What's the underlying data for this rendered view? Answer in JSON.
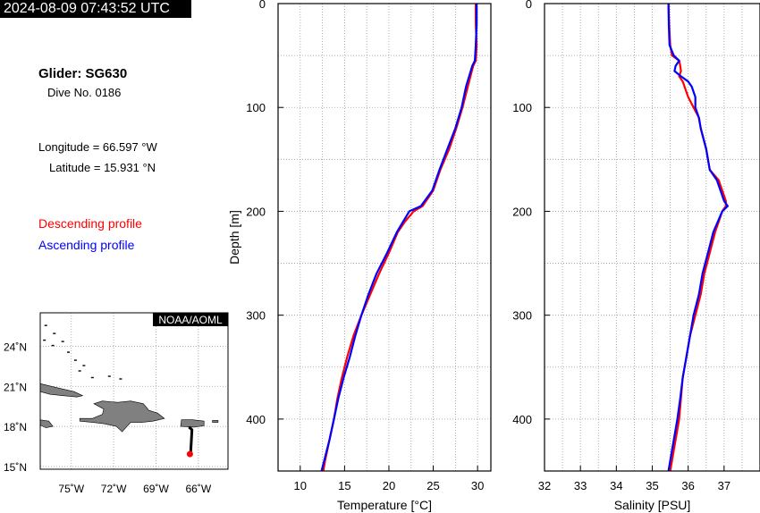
{
  "header": {
    "timestamp": "2024-08-09 07:43:52 UTC"
  },
  "info": {
    "glider": "Glider: SG630",
    "dive": "Dive No. 0186",
    "longitude": "Longitude = 66.597 °W",
    "latitude": "Latitude = 15.931 °N"
  },
  "legend": {
    "descending": "Descending profile",
    "ascending": "Ascending profile"
  },
  "colors": {
    "descending": "#ff0000",
    "ascending": "#0000ff",
    "land": "#808080",
    "track": "#000000"
  },
  "map": {
    "badge": "NOAA/AOML",
    "lat_ticks": [
      "24˚N",
      "21˚N",
      "18˚N",
      "15˚N"
    ],
    "lat_values": [
      24,
      21,
      18,
      15
    ],
    "lon_ticks": [
      "75˚W",
      "72˚W",
      "69˚W",
      "66˚W"
    ],
    "lon_values": [
      -75,
      -72,
      -69,
      -66
    ],
    "lon_range": [
      -77.2,
      -63.9
    ],
    "lat_range": [
      14.8,
      26.5
    ],
    "track": [
      [
        -66.7,
        17.9
      ],
      [
        -66.6,
        17.9
      ],
      [
        -66.45,
        17.75
      ],
      [
        -66.5,
        16.8
      ],
      [
        -66.55,
        16.0
      ]
    ],
    "position": [
      -66.597,
      15.931
    ]
  },
  "chart_data": [
    {
      "type": "line",
      "xlabel": "Temperature [°C]",
      "ylabel": "Depth [m]",
      "xlim": [
        7.5,
        31.5
      ],
      "ylim": [
        450,
        0
      ],
      "xticks": [
        10,
        15,
        20,
        25,
        30
      ],
      "yticks": [
        0,
        100,
        200,
        300,
        400
      ],
      "grid": true,
      "series": [
        {
          "name": "Descending profile",
          "depth": [
            0,
            20,
            40,
            55,
            60,
            80,
            100,
            120,
            140,
            160,
            180,
            195,
            200,
            210,
            220,
            240,
            260,
            280,
            300,
            320,
            340,
            360,
            380,
            400,
            420,
            440,
            450
          ],
          "values": [
            29.8,
            29.8,
            29.9,
            29.8,
            29.5,
            28.9,
            28.3,
            27.6,
            26.8,
            25.8,
            25.0,
            23.8,
            22.8,
            21.8,
            21.0,
            20.0,
            18.9,
            17.9,
            16.9,
            16.0,
            15.3,
            14.7,
            14.2,
            13.8,
            13.3,
            12.8,
            12.6
          ]
        },
        {
          "name": "Ascending profile",
          "depth": [
            0,
            20,
            40,
            55,
            60,
            80,
            100,
            120,
            140,
            160,
            180,
            195,
            200,
            210,
            220,
            240,
            260,
            280,
            300,
            320,
            340,
            360,
            380,
            400,
            420,
            440,
            450
          ],
          "values": [
            29.9,
            29.9,
            29.8,
            29.7,
            29.4,
            28.7,
            28.2,
            27.5,
            26.6,
            25.7,
            24.9,
            23.6,
            22.3,
            21.6,
            20.9,
            19.8,
            18.6,
            17.7,
            16.9,
            16.2,
            15.6,
            14.9,
            14.3,
            13.8,
            13.3,
            12.7,
            12.4
          ]
        }
      ]
    },
    {
      "type": "line",
      "xlabel": "Salinity [PSU]",
      "ylabel": "",
      "xlim": [
        32,
        38
      ],
      "ylim": [
        450,
        0
      ],
      "xticks": [
        32,
        33,
        34,
        35,
        36,
        37
      ],
      "yticks": [
        0,
        100,
        200,
        300,
        400
      ],
      "grid": true,
      "series": [
        {
          "name": "Descending profile",
          "depth": [
            0,
            20,
            40,
            50,
            55,
            60,
            65,
            70,
            75,
            80,
            90,
            100,
            110,
            120,
            140,
            160,
            170,
            180,
            190,
            195,
            200,
            220,
            240,
            260,
            280,
            300,
            320,
            340,
            360,
            380,
            400,
            420,
            440,
            450
          ],
          "values": [
            35.45,
            35.47,
            35.5,
            35.55,
            35.75,
            35.78,
            35.8,
            35.75,
            35.85,
            35.9,
            36.0,
            36.15,
            36.3,
            36.35,
            36.5,
            36.6,
            36.85,
            36.95,
            37.05,
            37.05,
            36.95,
            36.75,
            36.6,
            36.45,
            36.35,
            36.2,
            36.05,
            35.95,
            35.85,
            35.8,
            35.75,
            35.65,
            35.55,
            35.5
          ]
        },
        {
          "name": "Ascending profile",
          "depth": [
            0,
            20,
            40,
            50,
            55,
            60,
            65,
            70,
            75,
            80,
            90,
            100,
            110,
            120,
            140,
            160,
            170,
            180,
            190,
            195,
            200,
            220,
            240,
            260,
            280,
            300,
            320,
            340,
            360,
            380,
            400,
            420,
            440,
            450
          ],
          "values": [
            35.45,
            35.46,
            35.48,
            35.6,
            35.75,
            35.65,
            35.62,
            35.8,
            36.0,
            36.1,
            36.2,
            36.2,
            36.3,
            36.35,
            36.5,
            36.6,
            36.8,
            36.9,
            37.0,
            37.1,
            36.95,
            36.7,
            36.55,
            36.4,
            36.3,
            36.15,
            36.05,
            35.95,
            35.85,
            35.78,
            35.7,
            35.6,
            35.5,
            35.45
          ]
        }
      ]
    }
  ]
}
